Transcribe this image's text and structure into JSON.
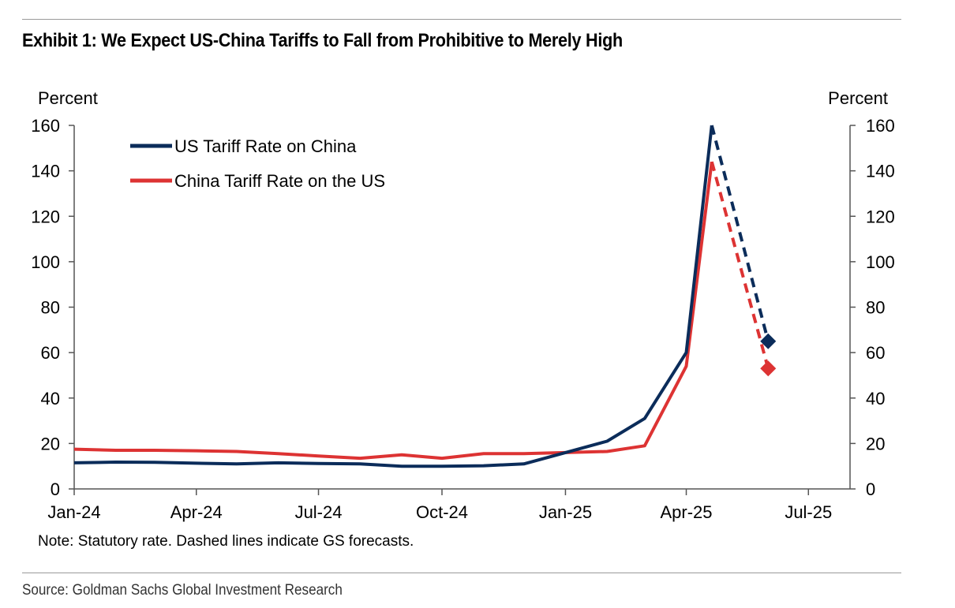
{
  "colors": {
    "us": "#0b2c5a",
    "china": "#dd3333",
    "axis": "#555555",
    "rule": "#9a9a9a"
  },
  "header": {
    "title": "Exhibit 1: We Expect US-China Tariffs to Fall from Prohibitive to Merely High"
  },
  "footer": {
    "note": "Note: Statutory rate. Dashed lines indicate GS forecasts.",
    "source": "Source: Goldman Sachs Global Investment Research"
  },
  "chart_data": {
    "type": "line",
    "title": "Exhibit 1: We Expect US-China Tariffs to Fall from Prohibitive to Merely High",
    "ylabel_left": "Percent",
    "ylabel_right": "Percent",
    "ylim": [
      0,
      160
    ],
    "yticks": [
      0,
      20,
      40,
      60,
      80,
      100,
      120,
      140,
      160
    ],
    "xlim": [
      "2024-01",
      "2025-08"
    ],
    "xticks": [
      "Jan-24",
      "Apr-24",
      "Jul-24",
      "Oct-24",
      "Jan-25",
      "Apr-25",
      "Jul-25"
    ],
    "legend_position": "top-left",
    "grid": false,
    "series": [
      {
        "name": "US Tariff Rate on China",
        "color": "#0b2c5a",
        "data": [
          {
            "x": "2024-01",
            "y": 11.5
          },
          {
            "x": "2024-02",
            "y": 11.8
          },
          {
            "x": "2024-03",
            "y": 11.7
          },
          {
            "x": "2024-04",
            "y": 11.3
          },
          {
            "x": "2024-05",
            "y": 11.0
          },
          {
            "x": "2024-06",
            "y": 11.5
          },
          {
            "x": "2024-07",
            "y": 11.2
          },
          {
            "x": "2024-08",
            "y": 11.0
          },
          {
            "x": "2024-09",
            "y": 10.0
          },
          {
            "x": "2024-10",
            "y": 10.0
          },
          {
            "x": "2024-11",
            "y": 10.2
          },
          {
            "x": "2024-12",
            "y": 11.0
          },
          {
            "x": "2025-01",
            "y": 16.0
          },
          {
            "x": "2025-02",
            "y": 21.0
          },
          {
            "x": "2025-03",
            "y": 31.0
          },
          {
            "x": "2025-04",
            "y": 60.0
          },
          {
            "x": "2025-04-20",
            "y": 160.0
          }
        ],
        "forecast": [
          {
            "x": "2025-04-20",
            "y": 160.0
          },
          {
            "x": "2025-06",
            "y": 65.0
          }
        ]
      },
      {
        "name": "China Tariff Rate on the US",
        "color": "#dd3333",
        "data": [
          {
            "x": "2024-01",
            "y": 17.5
          },
          {
            "x": "2024-02",
            "y": 17.0
          },
          {
            "x": "2024-03",
            "y": 17.0
          },
          {
            "x": "2024-04",
            "y": 16.8
          },
          {
            "x": "2024-05",
            "y": 16.5
          },
          {
            "x": "2024-06",
            "y": 15.5
          },
          {
            "x": "2024-07",
            "y": 14.5
          },
          {
            "x": "2024-08",
            "y": 13.5
          },
          {
            "x": "2024-09",
            "y": 15.0
          },
          {
            "x": "2024-10",
            "y": 13.5
          },
          {
            "x": "2024-11",
            "y": 15.5
          },
          {
            "x": "2024-12",
            "y": 15.5
          },
          {
            "x": "2025-01",
            "y": 16.0
          },
          {
            "x": "2025-02",
            "y": 16.5
          },
          {
            "x": "2025-03",
            "y": 19.0
          },
          {
            "x": "2025-04",
            "y": 54.0
          },
          {
            "x": "2025-04-20",
            "y": 144.0
          }
        ],
        "forecast": [
          {
            "x": "2025-04-20",
            "y": 144.0
          },
          {
            "x": "2025-06",
            "y": 53.0
          }
        ]
      }
    ]
  }
}
